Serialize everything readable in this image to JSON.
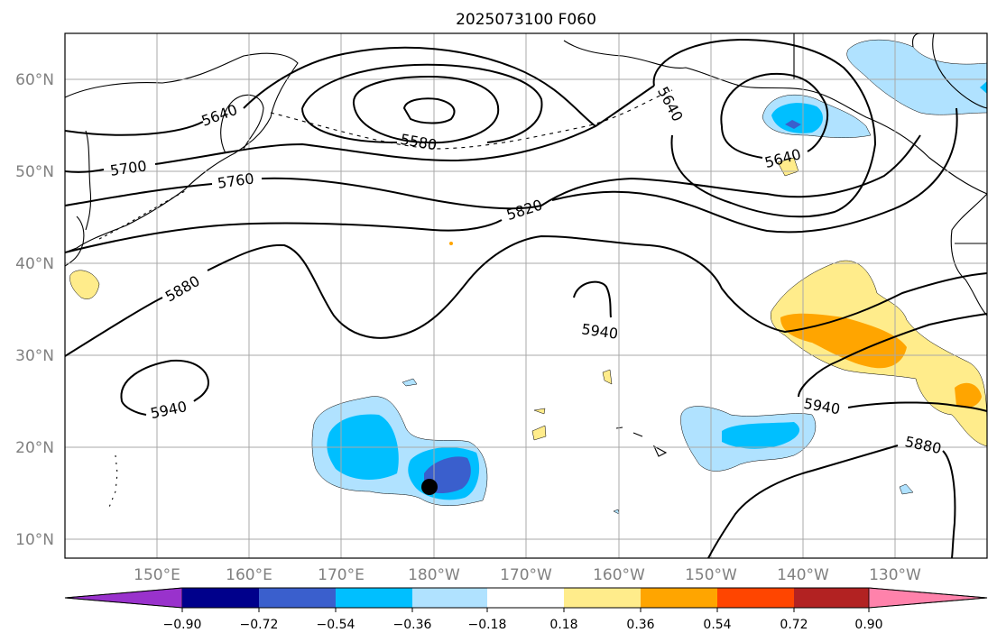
{
  "title": "2025073100 F060",
  "map": {
    "lon_labels": [
      "150°E",
      "160°E",
      "170°E",
      "180°W",
      "170°W",
      "160°W",
      "150°W",
      "140°W",
      "130°W"
    ],
    "lat_labels": [
      "60°N",
      "50°N",
      "40°N",
      "30°N",
      "20°N",
      "10°N"
    ],
    "storm_marker": "black-dot"
  },
  "contours": {
    "color": "#000000",
    "labels": [
      "5640",
      "5580",
      "5700",
      "5760",
      "5820",
      "5880",
      "5940",
      "5940",
      "5940",
      "5880",
      "5640",
      "5640"
    ]
  },
  "colorbar": {
    "ticks": [
      "−0.90",
      "−0.72",
      "−0.54",
      "−0.36",
      "−0.18",
      "0.18",
      "0.36",
      "0.54",
      "0.72",
      "0.90"
    ],
    "colors": [
      "#9932cc",
      "#00008b",
      "#3a5fcd",
      "#00bfff",
      "#b0e2ff",
      "#ffffff",
      "#ffec8b",
      "#ffa500",
      "#ff4500",
      "#b22222",
      "#ff82ab"
    ]
  },
  "colors": {
    "frame": "#000000",
    "grid": "#a9a9a9",
    "axis_text": "#808080"
  }
}
